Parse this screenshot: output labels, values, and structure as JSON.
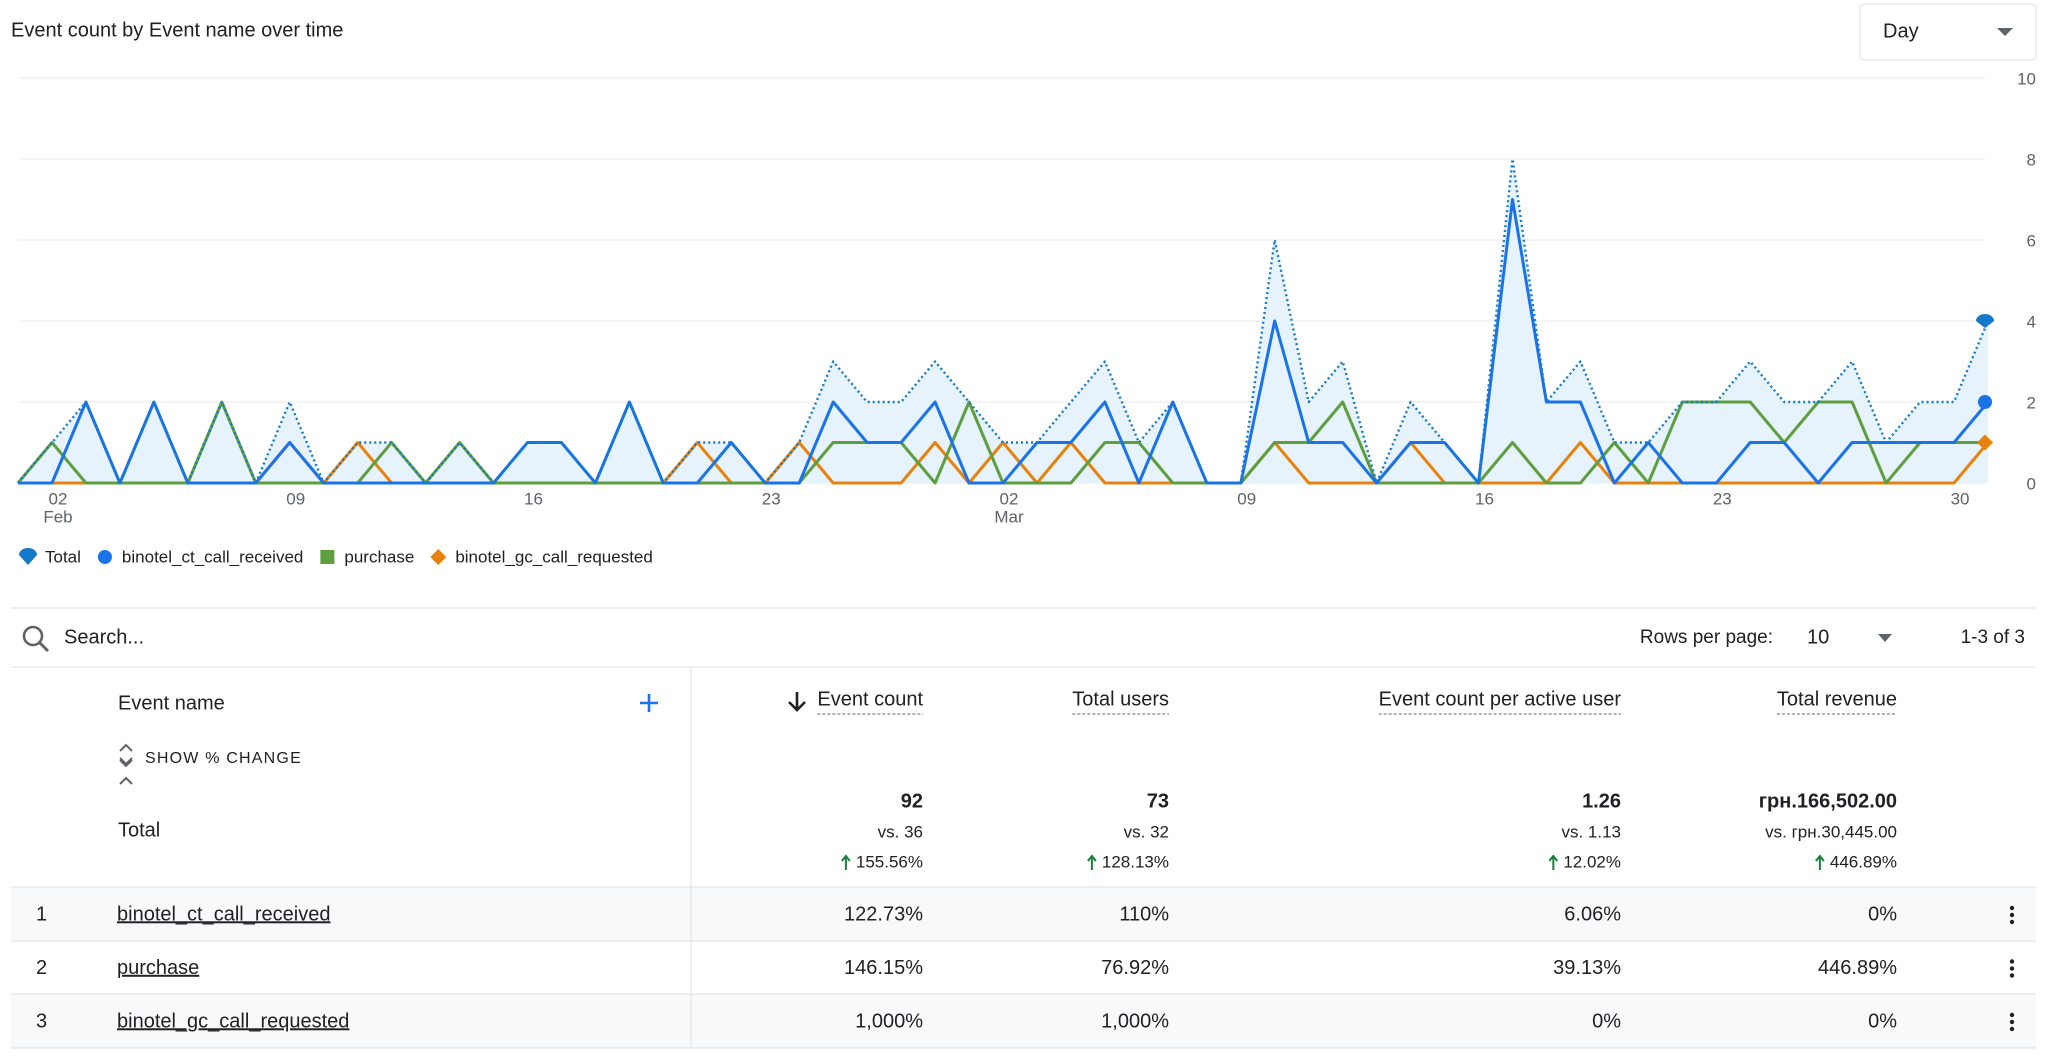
{
  "header": {
    "title": "Event count by Event name over time",
    "dropdown": "Day"
  },
  "chart_data": {
    "type": "line",
    "categories": [
      null,
      "02",
      null,
      null,
      null,
      null,
      null,
      null,
      "09",
      null,
      null,
      null,
      null,
      null,
      null,
      "16",
      null,
      null,
      null,
      null,
      null,
      null,
      "23",
      null,
      null,
      null,
      null,
      null,
      null,
      "02",
      null,
      null,
      null,
      null,
      null,
      null,
      "09",
      null,
      null,
      null,
      null,
      null,
      null,
      "16",
      null,
      null,
      null,
      null,
      null,
      null,
      "23",
      null,
      null,
      null,
      null,
      null,
      null,
      "30",
      null
    ],
    "category_months": [
      null,
      "Feb",
      null,
      null,
      null,
      null,
      null,
      null,
      null,
      null,
      null,
      null,
      null,
      null,
      null,
      null,
      null,
      null,
      null,
      null,
      null,
      null,
      null,
      null,
      null,
      null,
      null,
      null,
      null,
      "Mar",
      null,
      null,
      null,
      null,
      null,
      null,
      null,
      null,
      null,
      null,
      null,
      null,
      null,
      null,
      null,
      null,
      null,
      null,
      null,
      null,
      null,
      null,
      null,
      null,
      null,
      null,
      null,
      null,
      null
    ],
    "ylim": [
      0,
      10
    ],
    "yticks": [
      0,
      2,
      4,
      6,
      8,
      10
    ],
    "grid": true,
    "legend": "bottom-left",
    "series": [
      {
        "name": "Total",
        "color": "#1479c9",
        "style": "dotted",
        "area": true,
        "values": [
          0,
          1,
          2,
          0,
          2,
          0,
          2,
          0,
          2,
          0,
          1,
          1,
          0,
          1,
          0,
          1,
          1,
          0,
          2,
          0,
          1,
          1,
          0,
          1,
          3,
          2,
          2,
          3,
          2,
          1,
          1,
          2,
          3,
          1,
          2,
          0,
          0,
          6,
          2,
          3,
          0,
          2,
          1,
          0,
          8,
          2,
          3,
          1,
          1,
          2,
          2,
          3,
          2,
          2,
          3,
          1,
          2,
          2,
          4
        ]
      },
      {
        "name": "binotel_ct_call_received",
        "color": "#1a73e8",
        "style": "solid",
        "values": [
          0,
          0,
          2,
          0,
          2,
          0,
          0,
          0,
          1,
          0,
          0,
          0,
          0,
          0,
          0,
          1,
          1,
          0,
          2,
          0,
          0,
          1,
          0,
          0,
          2,
          1,
          1,
          2,
          0,
          0,
          1,
          1,
          2,
          0,
          2,
          0,
          0,
          4,
          1,
          1,
          0,
          1,
          1,
          0,
          7,
          2,
          2,
          0,
          1,
          0,
          0,
          1,
          1,
          0,
          1,
          1,
          1,
          1,
          2
        ]
      },
      {
        "name": "purchase",
        "color": "#5e9e3f",
        "style": "solid",
        "values": [
          0,
          1,
          0,
          0,
          0,
          0,
          2,
          0,
          0,
          0,
          0,
          1,
          0,
          1,
          0,
          0,
          0,
          0,
          0,
          0,
          0,
          0,
          0,
          0,
          1,
          1,
          1,
          0,
          2,
          0,
          0,
          0,
          1,
          1,
          0,
          0,
          0,
          1,
          1,
          2,
          0,
          0,
          0,
          0,
          1,
          0,
          0,
          1,
          0,
          2,
          2,
          2,
          1,
          2,
          2,
          0,
          1,
          1,
          1
        ]
      },
      {
        "name": "binotel_gc_call_requested",
        "color": "#e8820c",
        "style": "solid",
        "values": [
          0,
          0,
          0,
          0,
          0,
          0,
          0,
          0,
          1,
          0,
          1,
          0,
          0,
          0,
          0,
          0,
          0,
          0,
          0,
          0,
          1,
          0,
          0,
          1,
          0,
          0,
          0,
          1,
          0,
          1,
          0,
          1,
          0,
          0,
          0,
          0,
          0,
          1,
          0,
          0,
          0,
          1,
          0,
          0,
          0,
          0,
          1,
          0,
          0,
          0,
          0,
          0,
          0,
          0,
          0,
          0,
          0,
          0,
          1
        ]
      }
    ]
  },
  "toolbar": {
    "search": "Search...",
    "rows_per_page_label": "Rows per page:",
    "rows_per_page": "10",
    "pagination": "1-3 of 3"
  },
  "table": {
    "first_column": "Event name",
    "show_change": "SHOW % CHANGE",
    "columns": [
      "Event count",
      "Total users",
      "Event count per active user",
      "Total revenue"
    ],
    "total": {
      "label": "Total",
      "values": [
        "92",
        "73",
        "1.26",
        "грн.166,502.00"
      ],
      "compare": [
        "vs. 36",
        "vs. 32",
        "vs. 1.13",
        "vs. грн.30,445.00"
      ],
      "change": [
        "155.56%",
        "128.13%",
        "12.02%",
        "446.89%"
      ]
    },
    "rows": [
      [
        "1",
        "binotel_ct_call_received",
        "122.73%",
        "110%",
        "6.06%",
        "0%"
      ],
      [
        "2",
        "purchase",
        "146.15%",
        "76.92%",
        "39.13%",
        "446.89%"
      ],
      [
        "3",
        "binotel_gc_call_requested",
        "1,000%",
        "1,000%",
        "0%",
        "0%"
      ]
    ]
  }
}
